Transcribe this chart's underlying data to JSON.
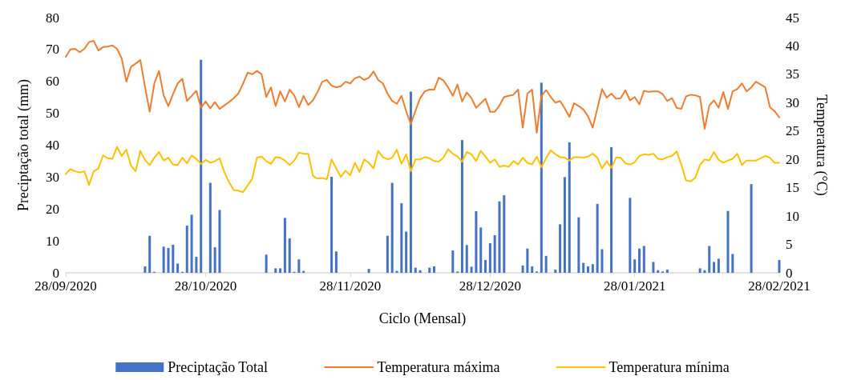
{
  "chart_data": {
    "type": "line",
    "xlabel": "Ciclo (Mensal)",
    "ylabel": "Preciptação total (mm)",
    "y2label": "Temperatura (°C)",
    "x": [
      "2020-09-28",
      "2020-09-29",
      "2020-09-30",
      "2020-10-01",
      "2020-10-02",
      "2020-10-03",
      "2020-10-04",
      "2020-10-05",
      "2020-10-06",
      "2020-10-07",
      "2020-10-08",
      "2020-10-09",
      "2020-10-10",
      "2020-10-11",
      "2020-10-12",
      "2020-10-13",
      "2020-10-14",
      "2020-10-15",
      "2020-10-16",
      "2020-10-17",
      "2020-10-18",
      "2020-10-19",
      "2020-10-20",
      "2020-10-21",
      "2020-10-22",
      "2020-10-23",
      "2020-10-24",
      "2020-10-25",
      "2020-10-26",
      "2020-10-27",
      "2020-10-28",
      "2020-10-29",
      "2020-10-30",
      "2020-10-31",
      "2020-11-01",
      "2020-11-02",
      "2020-11-03",
      "2020-11-04",
      "2020-11-05",
      "2020-11-06",
      "2020-11-07",
      "2020-11-08",
      "2020-11-09",
      "2020-11-10",
      "2020-11-11",
      "2020-11-12",
      "2020-11-13",
      "2020-11-14",
      "2020-11-15",
      "2020-11-16",
      "2020-11-17",
      "2020-11-18",
      "2020-11-19",
      "2020-11-20",
      "2020-11-21",
      "2020-11-22",
      "2020-11-23",
      "2020-11-24",
      "2020-11-25",
      "2020-11-26",
      "2020-11-27",
      "2020-11-28",
      "2020-11-29",
      "2020-11-30",
      "2020-12-01",
      "2020-12-02",
      "2020-12-03",
      "2020-12-04",
      "2020-12-05",
      "2020-12-06",
      "2020-12-07",
      "2020-12-08",
      "2020-12-09",
      "2020-12-10",
      "2020-12-11",
      "2020-12-12",
      "2020-12-13",
      "2020-12-14",
      "2020-12-15",
      "2020-12-16",
      "2020-12-17",
      "2020-12-18",
      "2020-12-19",
      "2020-12-20",
      "2020-12-21",
      "2020-12-22",
      "2020-12-23",
      "2020-12-24",
      "2020-12-25",
      "2020-12-26",
      "2020-12-27",
      "2020-12-28",
      "2020-12-29",
      "2020-12-30",
      "2020-12-31",
      "2021-01-01",
      "2021-01-02",
      "2021-01-03",
      "2021-01-04",
      "2021-01-05",
      "2021-01-06",
      "2021-01-07",
      "2021-01-08",
      "2021-01-09",
      "2021-01-10",
      "2021-01-11",
      "2021-01-12",
      "2021-01-13",
      "2021-01-14",
      "2021-01-15",
      "2021-01-16",
      "2021-01-17",
      "2021-01-18",
      "2021-01-19",
      "2021-01-20",
      "2021-01-21",
      "2021-01-22",
      "2021-01-23",
      "2021-01-24",
      "2021-01-25",
      "2021-01-26",
      "2021-01-27",
      "2021-01-28",
      "2021-01-29",
      "2021-01-30",
      "2021-01-31",
      "2021-02-01",
      "2021-02-02",
      "2021-02-03",
      "2021-02-04",
      "2021-02-05",
      "2021-02-06",
      "2021-02-07",
      "2021-02-08",
      "2021-02-09",
      "2021-02-10",
      "2021-02-11",
      "2021-02-12",
      "2021-02-13",
      "2021-02-14",
      "2021-02-15",
      "2021-02-16",
      "2021-02-17",
      "2021-02-18",
      "2021-02-19",
      "2021-02-20",
      "2021-02-21",
      "2021-02-22",
      "2021-02-23",
      "2021-02-24",
      "2021-02-25",
      "2021-02-26",
      "2021-02-27",
      "2021-02-28"
    ],
    "series": [
      {
        "type": "bar",
        "name": "Preciptação Total",
        "color": "#4472c4",
        "x": [
          "2020-10-15",
          "2020-10-16",
          "2020-10-17",
          "2020-10-19",
          "2020-10-20",
          "2020-10-21",
          "2020-10-22",
          "2020-10-23",
          "2020-10-24",
          "2020-10-25",
          "2020-10-26",
          "2020-10-27",
          "2020-10-29",
          "2020-10-30",
          "2020-10-31",
          "2020-11-10",
          "2020-11-12",
          "2020-11-13",
          "2020-11-14",
          "2020-11-15",
          "2020-11-16",
          "2020-11-17",
          "2020-11-18",
          "2020-11-24",
          "2020-11-25",
          "2020-12-02",
          "2020-12-06",
          "2020-12-07",
          "2020-12-08",
          "2020-12-09",
          "2020-12-10",
          "2020-12-11",
          "2020-12-12",
          "2020-12-13",
          "2020-12-15",
          "2020-12-16",
          "2020-12-20",
          "2020-12-21",
          "2020-12-22",
          "2020-12-23",
          "2020-12-24",
          "2020-12-25",
          "2020-12-26",
          "2020-12-27",
          "2020-12-28",
          "2020-12-29",
          "2020-12-30",
          "2020-12-31",
          "2021-01-04",
          "2021-01-05",
          "2021-01-06",
          "2021-01-07",
          "2021-01-08",
          "2021-01-09",
          "2021-01-11",
          "2021-01-12",
          "2021-01-13",
          "2021-01-14",
          "2021-01-16",
          "2021-01-17",
          "2021-01-18",
          "2021-01-19",
          "2021-01-20",
          "2021-01-21",
          "2021-01-23",
          "2021-01-27",
          "2021-01-28",
          "2021-01-29",
          "2021-01-30",
          "2021-02-01",
          "2021-02-02",
          "2021-02-03",
          "2021-02-04",
          "2021-02-11",
          "2021-02-12",
          "2021-02-13",
          "2021-02-14",
          "2021-02-15",
          "2021-02-17",
          "2021-02-18",
          "2021-02-22",
          "2021-02-28"
        ],
        "values": [
          2.0,
          11.6,
          0.3,
          8.2,
          7.8,
          8.8,
          2.9,
          0.3,
          14.8,
          18.2,
          5.0,
          66.8,
          28.2,
          8.0,
          19.7,
          5.7,
          1.4,
          1.4,
          17.2,
          10.8,
          0.3,
          4.2,
          0.6,
          30.1,
          6.7,
          1.2,
          11.6,
          28.2,
          0.6,
          21.8,
          12.9,
          56.8,
          1.6,
          0.8,
          1.6,
          2.0,
          7.0,
          0.4,
          41.6,
          8.7,
          1.9,
          19.3,
          14.2,
          4.0,
          9.3,
          11.8,
          22.4,
          24.3,
          2.3,
          7.6,
          2.0,
          0.4,
          59.6,
          5.3,
          1.0,
          15.2,
          30.0,
          40.9,
          17.4,
          3.1,
          2.0,
          2.7,
          21.6,
          7.4,
          39.4,
          23.5,
          4.2,
          7.6,
          8.4,
          3.4,
          0.8,
          0.4,
          1.0,
          1.4,
          0.8,
          8.4,
          3.4,
          4.4,
          19.4,
          5.9,
          27.8,
          4.0
        ]
      },
      {
        "name": "Temperatura máxima",
        "color": "#ed7d31",
        "axis": "y2",
        "values": [
          38.1,
          39.4,
          39.5,
          38.9,
          39.5,
          40.7,
          40.9,
          39.2,
          39.8,
          39.9,
          40.1,
          39.5,
          37.8,
          33.7,
          36.3,
          36.9,
          37.5,
          32.8,
          28.4,
          33.4,
          35.6,
          31.3,
          29.4,
          31.5,
          33.4,
          34.2,
          30.3,
          31.2,
          32.1,
          29.1,
          30.2,
          29.0,
          30.1,
          28.9,
          29.5,
          30.1,
          30.8,
          31.6,
          33.3,
          35.3,
          35.0,
          35.6,
          35.0,
          31.0,
          32.7,
          29.4,
          32.0,
          30.2,
          32.3,
          31.3,
          29.2,
          31.2,
          29.6,
          30.4,
          31.9,
          33.7,
          34.0,
          33.0,
          32.7,
          32.9,
          33.7,
          33.4,
          34.3,
          34.6,
          34.0,
          34.4,
          35.5,
          34.0,
          33.4,
          31.6,
          30.3,
          29.8,
          31.2,
          28.5,
          26.2,
          28.6,
          30.8,
          32.0,
          32.3,
          32.3,
          34.4,
          33.9,
          32.7,
          31.2,
          33.2,
          30.2,
          31.8,
          30.8,
          29.1,
          29.9,
          30.7,
          28.4,
          28.4,
          29.5,
          31.0,
          31.2,
          31.4,
          32.3,
          25.6,
          31.6,
          32.3,
          24.7,
          31.2,
          32.2,
          31.0,
          30.0,
          30.3,
          29.0,
          27.5,
          29.9,
          29.4,
          28.8,
          27.6,
          25.6,
          29.0,
          32.4,
          30.9,
          31.6,
          30.7,
          30.8,
          32.2,
          30.4,
          31.0,
          29.7,
          32.1,
          31.9,
          32.0,
          32.0,
          31.5,
          30.3,
          30.8,
          29.1,
          28.9,
          31.1,
          31.4,
          31.3,
          31.0,
          25.4,
          29.5,
          30.4,
          29.1,
          31.9,
          28.9,
          32.0,
          32.4,
          33.4,
          32.0,
          32.7,
          33.7,
          33.2,
          32.7,
          29.2,
          28.5,
          27.4
        ]
      },
      {
        "name": "Temperatura mínima",
        "color": "#ffc000",
        "axis": "y2",
        "values": [
          17.4,
          18.3,
          17.9,
          17.7,
          17.9,
          15.5,
          17.9,
          18.4,
          20.7,
          20.2,
          20.1,
          22.2,
          20.6,
          21.7,
          18.9,
          17.9,
          21.5,
          19.9,
          19.0,
          20.3,
          21.3,
          19.8,
          20.3,
          19.1,
          19.0,
          20.3,
          19.3,
          20.7,
          20.1,
          19.2,
          19.9,
          19.4,
          19.7,
          20.2,
          17.8,
          16.0,
          14.6,
          14.5,
          14.2,
          15.4,
          16.6,
          20.3,
          20.5,
          19.7,
          19.2,
          20.4,
          20.3,
          19.8,
          19.0,
          19.8,
          21.2,
          21.0,
          21.0,
          17.1,
          16.6,
          16.7,
          16.5,
          20.0,
          18.4,
          16.9,
          18.0,
          17.2,
          19.4,
          17.8,
          20.0,
          19.4,
          18.4,
          21.5,
          20.4,
          20.0,
          20.3,
          21.7,
          19.2,
          20.9,
          17.9,
          20.0,
          20.0,
          20.4,
          20.2,
          19.7,
          19.6,
          20.3,
          21.8,
          21.0,
          20.5,
          19.6,
          21.3,
          20.9,
          19.7,
          21.5,
          20.5,
          19.4,
          20.0,
          18.7,
          18.9,
          18.7,
          19.7,
          19.1,
          20.3,
          19.4,
          19.1,
          20.5,
          18.6,
          20.2,
          21.6,
          20.9,
          20.4,
          20.3,
          19.8,
          20.4,
          20.4,
          20.3,
          20.5,
          21.0,
          20.3,
          18.4,
          19.7,
          18.5,
          20.3,
          20.3,
          19.3,
          19.1,
          19.5,
          20.6,
          20.9,
          20.8,
          21.0,
          20.1,
          20.0,
          20.4,
          20.6,
          21.4,
          19.1,
          16.3,
          16.1,
          16.8,
          19.0,
          20.0,
          19.8,
          21.3,
          19.9,
          19.4,
          19.8,
          20.1,
          21.0,
          19.0,
          19.8,
          19.8,
          19.8,
          20.2,
          20.6,
          20.3,
          19.4,
          19.4
        ]
      }
    ],
    "xlim": [
      "2020-09-28",
      "2021-02-28"
    ],
    "xticks": [
      {
        "value": "2020-09-28",
        "label": "28/09/2020"
      },
      {
        "value": "2020-10-28",
        "label": "28/10/2020"
      },
      {
        "value": "2020-11-28",
        "label": "28/11/2020"
      },
      {
        "value": "2020-12-28",
        "label": "28/12/2020"
      },
      {
        "value": "2021-01-28",
        "label": "28/01/2021"
      },
      {
        "value": "2021-02-28",
        "label": "28/02/2021"
      }
    ],
    "ylim": [
      0,
      80
    ],
    "yticks": [
      0,
      10,
      20,
      30,
      40,
      50,
      60,
      70,
      80
    ],
    "y2lim": [
      0,
      45
    ],
    "y2ticks": [
      0,
      5,
      10,
      15,
      20,
      25,
      30,
      35,
      40,
      45
    ],
    "legend": "bottom",
    "grid": false,
    "marker": "none",
    "line_style": "solid"
  }
}
